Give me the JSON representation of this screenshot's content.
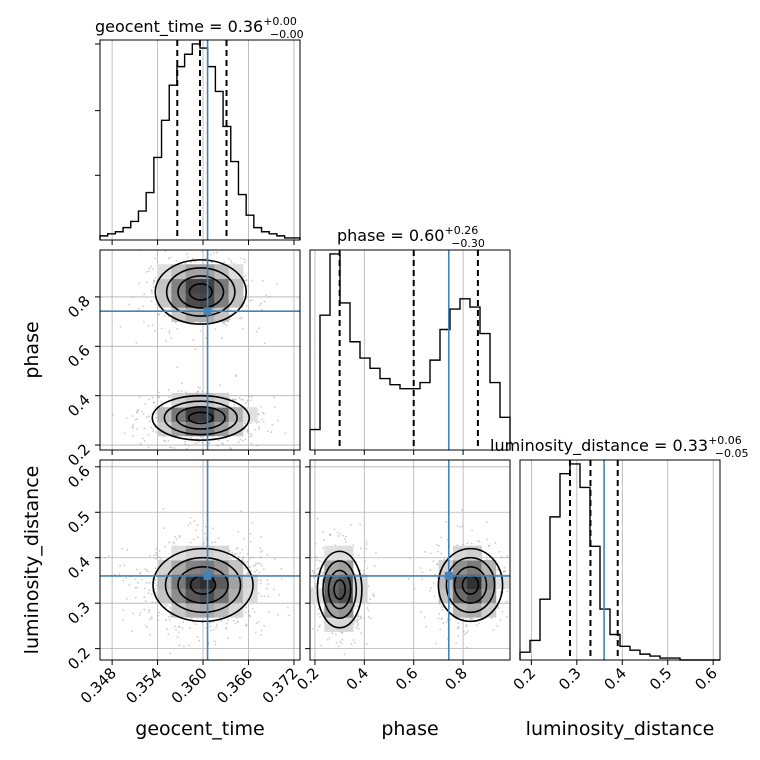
{
  "chart_data": {
    "type": "corner",
    "parameters": [
      "geocent_time",
      "phase",
      "luminosity_distance"
    ],
    "titles": [
      {
        "param": "geocent_time",
        "text": "geocent_time = 0.36",
        "upper": "+0.00",
        "lower": "−0.00"
      },
      {
        "param": "phase",
        "text": "phase = 0.60",
        "upper": "+0.26",
        "lower": "−0.30"
      },
      {
        "param": "luminosity_distance",
        "text": "luminosity_distance = 0.33",
        "upper": "+0.06",
        "lower": "−0.05"
      }
    ],
    "ranges": {
      "geocent_time": [
        0.3464,
        0.3728
      ],
      "phase": [
        0.18,
        0.99
      ],
      "luminosity_distance": [
        0.175,
        0.615
      ]
    },
    "ticks": {
      "geocent_time": [
        "0.348",
        "0.354",
        "0.360",
        "0.366",
        "0.372"
      ],
      "phase": [
        "0.2",
        "0.4",
        "0.6",
        "0.8"
      ],
      "luminosity_distance": [
        "0.2",
        "0.3",
        "0.4",
        "0.5",
        "0.6"
      ]
    },
    "truths": {
      "geocent_time": 0.3606,
      "phase": 0.742,
      "luminosity_distance": 0.36
    },
    "quantiles": {
      "geocent_time": [
        0.3566,
        0.3596,
        0.3631
      ],
      "phase": [
        0.3,
        0.6,
        0.86
      ],
      "luminosity_distance": [
        0.285,
        0.33,
        0.39
      ]
    },
    "histograms": {
      "geocent_time": {
        "bins": 26,
        "counts": [
          2,
          3,
          4,
          6,
          9,
          14,
          23,
          40,
          58,
          75,
          84,
          90,
          95,
          93,
          84,
          72,
          55,
          38,
          22,
          12,
          6,
          4,
          3,
          2,
          1,
          1
        ]
      },
      "phase": {
        "bins": 20,
        "counts": [
          10,
          66,
          96,
          72,
          53,
          45,
          40,
          35,
          32,
          30,
          30,
          33,
          44,
          59,
          69,
          74,
          70,
          57,
          33,
          16
        ]
      },
      "luminosity_distance": {
        "bins": 20,
        "counts": [
          4,
          10,
          31,
          73,
          95,
          100,
          88,
          58,
          26,
          13,
          7,
          5,
          3,
          2,
          1,
          1,
          0,
          0,
          0,
          0
        ]
      }
    },
    "density_modes": {
      "phase_vs_geocent_time": [
        {
          "x": 0.3597,
          "y": 0.82,
          "sx": 0.003,
          "sy": 0.065
        },
        {
          "x": 0.3597,
          "y": 0.31,
          "sx": 0.0032,
          "sy": 0.045
        }
      ],
      "luminosity_distance_vs_geocent_time": [
        {
          "x": 0.36,
          "y": 0.34,
          "sx": 0.0033,
          "sy": 0.04
        }
      ],
      "luminosity_distance_vs_phase": [
        {
          "x": 0.3,
          "y": 0.33,
          "sx": 0.045,
          "sy": 0.042
        },
        {
          "x": 0.83,
          "y": 0.34,
          "sx": 0.065,
          "sy": 0.04
        }
      ]
    },
    "grid": true
  }
}
